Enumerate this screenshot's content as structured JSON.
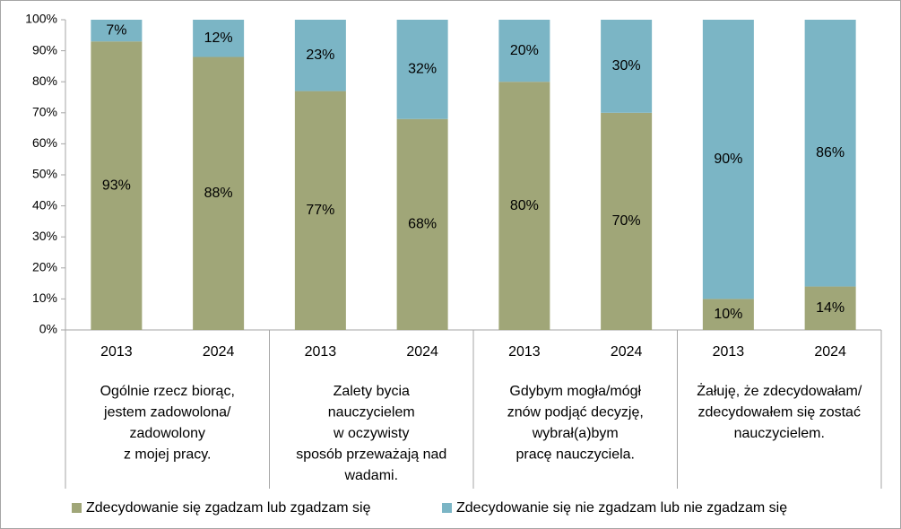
{
  "chart_data": {
    "type": "stacked_bar",
    "categories": [
      "2013",
      "2024",
      "2013",
      "2024",
      "2013",
      "2024",
      "2013",
      "2024"
    ],
    "groups": [
      {
        "label_lines": [
          "Ogólnie rzecz biorąc,",
          "jestem zadowolona/",
          "zadowolony",
          "z mojej pracy."
        ]
      },
      {
        "label_lines": [
          "Zalety bycia",
          "nauczycielem",
          "w oczywisty",
          "sposób przeważają nad",
          "wadami."
        ]
      },
      {
        "label_lines": [
          "Gdybym mogła/mógł",
          "znów podjąć decyzję,",
          "wybrał(a)bym",
          "pracę nauczyciela."
        ]
      },
      {
        "label_lines": [
          "Żałuję, że zdecydowałam/",
          "zdecydowałem się zostać",
          "nauczycielem."
        ]
      }
    ],
    "series": [
      {
        "name": "Zdecydowanie się zgadzam lub zgadzam się",
        "color": "#a0a678",
        "values": [
          93,
          88,
          77,
          68,
          80,
          70,
          10,
          14
        ],
        "value_labels": [
          "93%",
          "88%",
          "77%",
          "68%",
          "80%",
          "70%",
          "10%",
          "14%"
        ]
      },
      {
        "name": "Zdecydowanie się nie zgadzam lub nie zgadzam się",
        "color": "#7bb5c5",
        "values": [
          7,
          12,
          23,
          32,
          20,
          30,
          90,
          86
        ],
        "value_labels": [
          "7%",
          "12%",
          "23%",
          "32%",
          "20%",
          "30%",
          "90%",
          "86%"
        ]
      }
    ],
    "ylim": [
      0,
      100
    ],
    "yticks": [
      {
        "value": 0,
        "label": "0%"
      },
      {
        "value": 10,
        "label": "10%"
      },
      {
        "value": 20,
        "label": "20%"
      },
      {
        "value": 30,
        "label": "30%"
      },
      {
        "value": 40,
        "label": "40%"
      },
      {
        "value": 50,
        "label": "50%"
      },
      {
        "value": 60,
        "label": "60%"
      },
      {
        "value": 70,
        "label": "70%"
      },
      {
        "value": 80,
        "label": "80%"
      },
      {
        "value": 90,
        "label": "90%"
      },
      {
        "value": 100,
        "label": "100%"
      }
    ],
    "grid": false,
    "legend": "bottom"
  }
}
